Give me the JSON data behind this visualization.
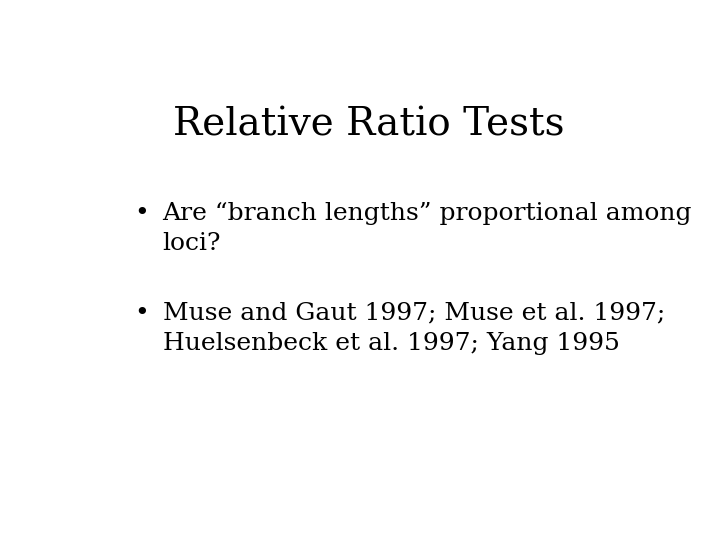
{
  "title": "Relative Ratio Tests",
  "title_fontsize": 28,
  "title_fontfamily": "DejaVu Serif",
  "bullet1_text": "Are “branch lengths” proportional among\nloci?",
  "bullet2_text": "Muse and Gaut 1997; Muse et al. 1997;\nHuelsenbeck et al. 1997; Yang 1995",
  "bullet_fontsize": 18,
  "bullet_fontfamily": "DejaVu Serif",
  "background_color": "#ffffff",
  "text_color": "#000000",
  "bullet_symbol": "•"
}
